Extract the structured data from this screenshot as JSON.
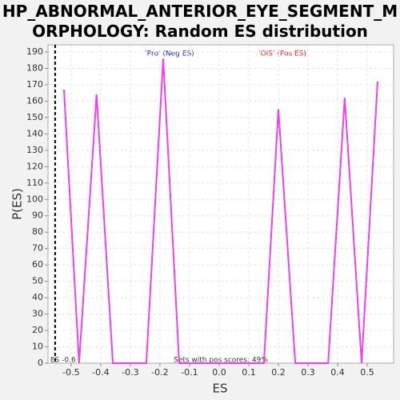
{
  "chart_data": {
    "type": "line",
    "title": "HP_ABNORMAL_ANTERIOR_EYE_SEGMENT_MORPHOLOGY: Random ES distribution",
    "x_label": "ES",
    "y_label": "P(ES)",
    "x": [
      -0.524,
      -0.473,
      -0.414,
      -0.359,
      -0.246,
      -0.189,
      -0.135,
      0.151,
      0.2,
      0.257,
      0.368,
      0.424,
      0.481,
      0.535
    ],
    "series": [
      {
        "color": "#ee40ee",
        "values": [
          167,
          0,
          164,
          0,
          0,
          186,
          0,
          0,
          155,
          0,
          0,
          162,
          0,
          172
        ]
      }
    ],
    "xlim": [
      -0.578,
      0.589
    ],
    "ylim": [
      0,
      194.4
    ],
    "xticks": [
      -0.5,
      -0.4,
      -0.3,
      -0.2,
      -0.1,
      0.0,
      0.1,
      0.2,
      0.3,
      0.4,
      0.5
    ],
    "yticks": [
      0,
      10,
      20,
      30,
      40,
      50,
      60,
      70,
      80,
      90,
      100,
      110,
      120,
      130,
      140,
      150,
      160,
      170,
      180,
      190
    ],
    "grid": true,
    "es_line": {
      "value": -0.554,
      "label": "ES -0.6"
    },
    "neg_label": "'Pro' (Neg ES)",
    "pos_label": "'OIS' (Pos ES)",
    "pos_scores_label": "Sets with pos scores: 49%"
  }
}
